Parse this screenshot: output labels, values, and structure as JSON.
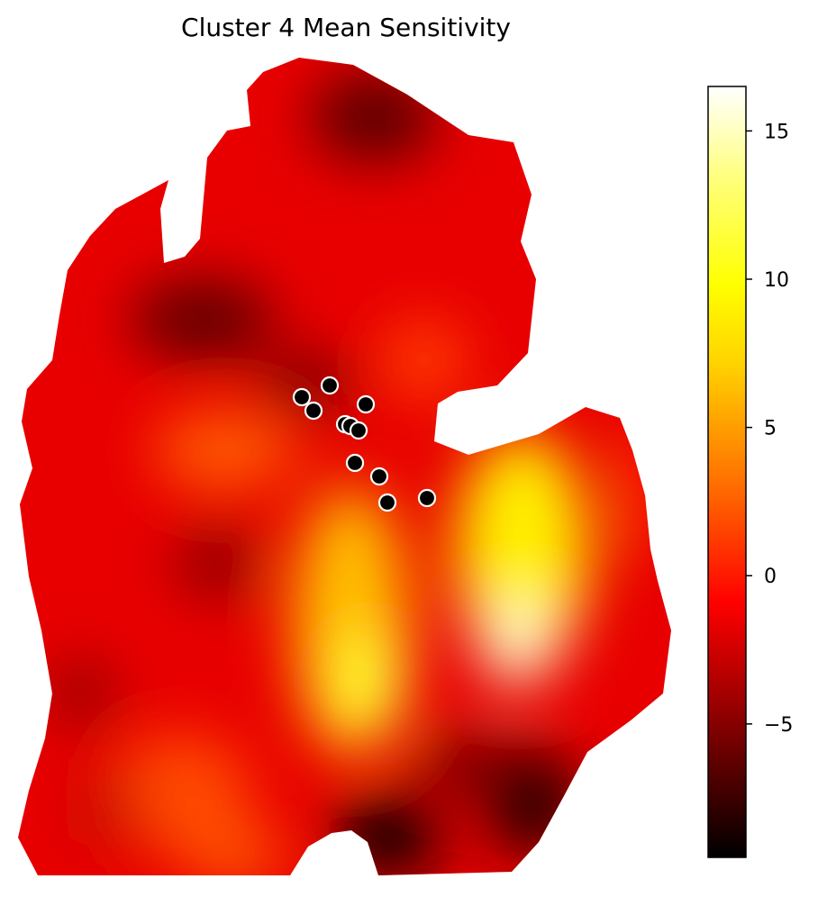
{
  "chart_data": {
    "type": "heatmap",
    "title": "Cluster 4 Mean Sensitivity",
    "xlabel": "",
    "ylabel": "",
    "colormap": "hot",
    "colorbar": {
      "min": -9.5,
      "max": 16.5,
      "ticks": [
        -5,
        0,
        5,
        10,
        15
      ],
      "tick_labels": [
        "−5",
        "0",
        "5",
        "10",
        "15"
      ],
      "stops": [
        {
          "value": -9.5,
          "color": "#000000"
        },
        {
          "value": -5.2,
          "color": "#800000"
        },
        {
          "value": -0.9,
          "color": "#ff0000"
        },
        {
          "value": 2.9,
          "color": "#ff6a00"
        },
        {
          "value": 7.2,
          "color": "#ffd400"
        },
        {
          "value": 9.8,
          "color": "#ffff00"
        },
        {
          "value": 13.5,
          "color": "#ffff80"
        },
        {
          "value": 16.5,
          "color": "#ffffff"
        }
      ]
    },
    "sites": [
      {
        "lon": -84.87,
        "lat": 43.06
      },
      {
        "lon": -84.47,
        "lat": 42.85
      },
      {
        "lon": -85.18,
        "lat": 42.93
      },
      {
        "lon": -85.05,
        "lat": 42.78
      },
      {
        "lon": -84.7,
        "lat": 42.63
      },
      {
        "lon": -84.64,
        "lat": 42.61
      },
      {
        "lon": -84.55,
        "lat": 42.56
      },
      {
        "lon": -84.59,
        "lat": 42.2
      },
      {
        "lon": -84.32,
        "lat": 42.05
      },
      {
        "lon": -84.23,
        "lat": 41.76
      },
      {
        "lon": -83.79,
        "lat": 41.81
      }
    ],
    "grid": false,
    "legend": "none"
  }
}
